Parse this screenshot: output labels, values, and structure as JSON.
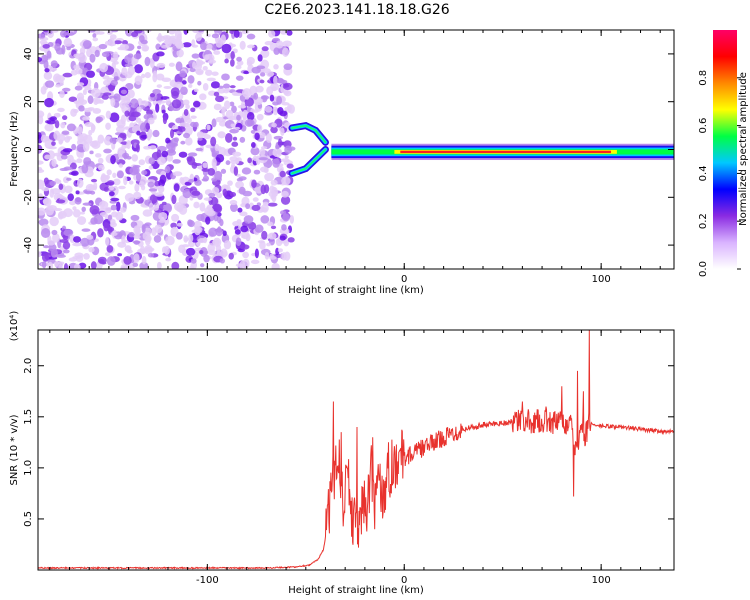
{
  "figure_title": "C2E6.2023.141.18.18.G26",
  "chart_data": [
    {
      "type": "heatmap",
      "xlabel": "Height of straight line (km)",
      "ylabel": "Frequency (Hz)",
      "xlim": [
        -186,
        137
      ],
      "ylim": [
        -50,
        50
      ],
      "xticks": [
        -100,
        0,
        100
      ],
      "xtick_labels": [
        "-100",
        "0",
        "100"
      ],
      "yticks": [
        -40,
        -20,
        0,
        20,
        40
      ],
      "ytick_labels": [
        "-40",
        "-20",
        "0",
        "20",
        "40"
      ],
      "noise_region_x": [
        -186,
        -57
      ],
      "main_track": {
        "frequency_hz": -1,
        "x_range": [
          -37,
          137
        ],
        "strong_x_range": [
          -5,
          108
        ]
      },
      "upper_branch": [
        [
          -57,
          9
        ],
        [
          -50,
          10
        ],
        [
          -45,
          8
        ],
        [
          -40,
          3
        ]
      ],
      "lower_branch": [
        [
          -57,
          -10
        ],
        [
          -50,
          -8
        ],
        [
          -45,
          -4
        ],
        [
          -40,
          0
        ]
      ],
      "colorbar": {
        "label": "Normalized spectral amplitude",
        "range": [
          0.0,
          1.0
        ],
        "ticks": [
          0.0,
          0.2,
          0.4,
          0.6,
          0.8
        ],
        "tick_labels": [
          "0.0",
          "0.2",
          "0.4",
          "0.6",
          "0.8"
        ],
        "colors": [
          "#ffffff",
          "#d9b3ff",
          "#8a2be2",
          "#0000ff",
          "#00c8ff",
          "#00ff44",
          "#ffff00",
          "#ff8800",
          "#ff0000",
          "#ff0066"
        ]
      },
      "grid": false
    },
    {
      "type": "line",
      "xlabel": "Height of straight line (km)",
      "ylabel": "SNR (10 * v/v)",
      "multiplier_label": "(x10⁴)",
      "xlim": [
        -186,
        137
      ],
      "ylim": [
        0,
        2.35
      ],
      "xticks": [
        -100,
        0,
        100
      ],
      "xtick_labels": [
        "-100",
        "0",
        "100"
      ],
      "yticks": [
        0.5,
        1.0,
        1.5,
        2.0
      ],
      "ytick_labels": [
        "0.5",
        "1.0",
        "1.5",
        "2.0"
      ],
      "color": "#e8322d",
      "grid": false,
      "series": [
        {
          "x": [
            -186,
            -150,
            -100,
            -70,
            -55,
            -48,
            -44,
            -41,
            -39,
            -37,
            -35,
            -33,
            -31,
            -29,
            -27,
            -25,
            -23,
            -21,
            -19,
            -17,
            -15,
            -13,
            -11,
            -9,
            -7,
            -5,
            -3,
            0,
            5,
            10,
            20,
            30,
            40,
            50,
            55,
            60,
            65,
            70,
            75,
            80,
            85,
            88,
            90,
            92,
            94,
            96,
            100,
            110,
            120,
            130,
            137
          ],
          "y": [
            0.02,
            0.02,
            0.02,
            0.02,
            0.03,
            0.05,
            0.1,
            0.2,
            0.45,
            0.75,
            1.0,
            1.1,
            0.6,
            1.2,
            0.4,
            0.6,
            0.3,
            0.8,
            0.45,
            1.0,
            0.6,
            1.05,
            0.7,
            0.9,
            1.0,
            1.05,
            1.1,
            1.1,
            1.15,
            1.2,
            1.3,
            1.38,
            1.42,
            1.44,
            1.45,
            1.46,
            1.45,
            1.46,
            1.45,
            1.44,
            1.4,
            1.1,
            1.5,
            1.3,
            1.45,
            1.42,
            1.41,
            1.4,
            1.38,
            1.36,
            1.35
          ]
        }
      ],
      "spikes": [
        [
          -36,
          1.65
        ],
        [
          -32,
          1.35
        ],
        [
          -24,
          1.4
        ],
        [
          -16,
          1.3
        ],
        [
          -8,
          1.25
        ],
        [
          60,
          1.65
        ],
        [
          72,
          1.6
        ],
        [
          80,
          1.8
        ],
        [
          86,
          0.72
        ],
        [
          88,
          1.95
        ],
        [
          91,
          1.75
        ],
        [
          94,
          2.35
        ]
      ]
    }
  ]
}
